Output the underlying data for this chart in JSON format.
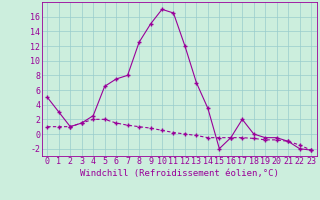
{
  "title": "",
  "xlabel": "Windchill (Refroidissement éolien,°C)",
  "x": [
    0,
    1,
    2,
    3,
    4,
    5,
    6,
    7,
    8,
    9,
    10,
    11,
    12,
    13,
    14,
    15,
    16,
    17,
    18,
    19,
    20,
    21,
    22,
    23
  ],
  "line1": [
    5.0,
    3.0,
    1.0,
    1.5,
    2.5,
    6.5,
    7.5,
    8.0,
    12.5,
    15.0,
    17.0,
    16.5,
    12.0,
    7.0,
    3.5,
    -2.0,
    -0.5,
    2.0,
    0.0,
    -0.5,
    -0.5,
    -1.0,
    -2.0,
    -2.2
  ],
  "line2": [
    1.0,
    1.0,
    1.0,
    1.5,
    2.0,
    2.0,
    1.5,
    1.2,
    1.0,
    0.8,
    0.5,
    0.2,
    0.0,
    -0.2,
    -0.5,
    -0.5,
    -0.5,
    -0.5,
    -0.6,
    -0.8,
    -0.8,
    -1.0,
    -1.5,
    -2.2
  ],
  "line_color": "#990099",
  "bg_color": "#cceedd",
  "grid_color": "#99cccc",
  "ylim": [
    -3.0,
    18.0
  ],
  "yticks": [
    -2,
    0,
    2,
    4,
    6,
    8,
    10,
    12,
    14,
    16
  ],
  "xticks": [
    0,
    1,
    2,
    3,
    4,
    5,
    6,
    7,
    8,
    9,
    10,
    11,
    12,
    13,
    14,
    15,
    16,
    17,
    18,
    19,
    20,
    21,
    22,
    23
  ],
  "marker": "+",
  "tick_fontsize": 6.0,
  "xlabel_fontsize": 6.5
}
